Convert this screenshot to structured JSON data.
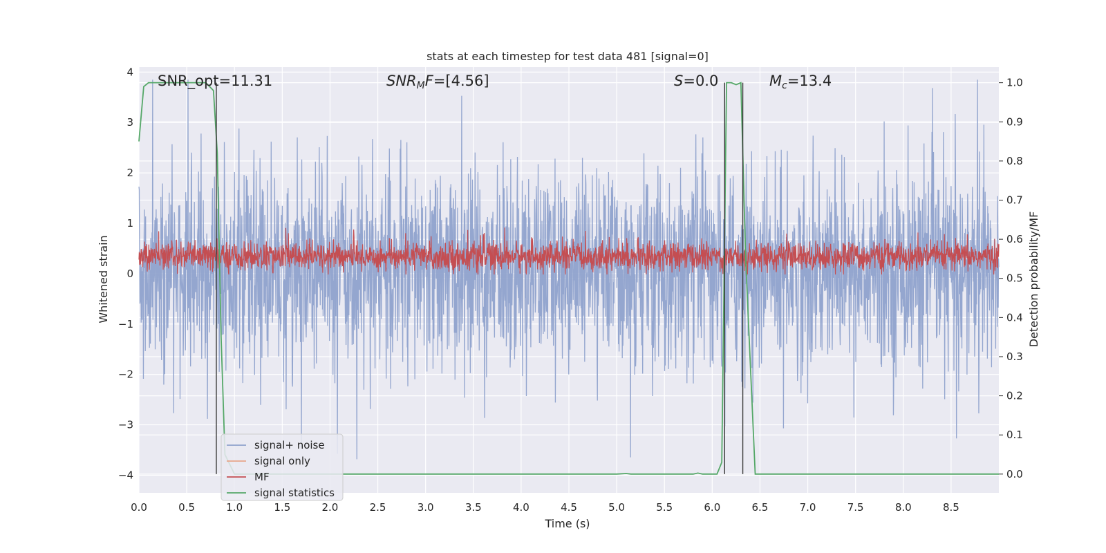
{
  "chart_data": {
    "type": "line",
    "title": "stats at each timestep for test data 481 [signal=0]",
    "xlabel": "Time (s)",
    "ylabel": "Whitened strain",
    "y2label": "Detection probability/MF",
    "xlim": [
      0,
      9.0
    ],
    "ylim": [
      -4.35,
      4.1
    ],
    "y2lim": [
      -0.048,
      1.04
    ],
    "xticks": [
      "0.0",
      "0.5",
      "1.0",
      "1.5",
      "2.0",
      "2.5",
      "3.0",
      "3.5",
      "4.0",
      "4.5",
      "5.0",
      "5.5",
      "6.0",
      "6.5",
      "7.0",
      "7.5",
      "8.0",
      "8.5"
    ],
    "xtick_values": [
      0.0,
      0.5,
      1.0,
      1.5,
      2.0,
      2.5,
      3.0,
      3.5,
      4.0,
      4.5,
      5.0,
      5.5,
      6.0,
      6.5,
      7.0,
      7.5,
      8.0,
      8.5
    ],
    "yticks": [
      "4",
      "3",
      "2",
      "1",
      "0",
      "−1",
      "−2",
      "−3",
      "−4"
    ],
    "ytick_values": [
      4,
      3,
      2,
      1,
      0,
      -1,
      -2,
      -3,
      -4
    ],
    "y2ticks": [
      "1.0",
      "0.9",
      "0.8",
      "0.7",
      "0.6",
      "0.5",
      "0.4",
      "0.3",
      "0.2",
      "0.1",
      "0.0"
    ],
    "y2tick_values": [
      1.0,
      0.9,
      0.8,
      0.7,
      0.6,
      0.5,
      0.4,
      0.3,
      0.2,
      0.1,
      0.0
    ],
    "grid": true,
    "legend_position": "lower-left",
    "annotations": [
      {
        "name": "snr-opt",
        "text": "SNR_opt=11.31"
      },
      {
        "name": "snr-mf",
        "text": "SNR_MF=[4.56]"
      },
      {
        "name": "s-value",
        "text": "S=0.0"
      },
      {
        "name": "mc-value",
        "text": "M_c=13.4"
      }
    ],
    "vlines_x": [
      0.81,
      6.13,
      6.32
    ],
    "series": [
      {
        "name": "signal+ noise",
        "color": "#8fa2cc",
        "description": "dense whitened strain noise",
        "typical_range": [
          -2.0,
          2.2
        ],
        "extremes": [
          -4.0,
          3.85
        ],
        "sample_rate_display": 3000,
        "n_points": 2700
      },
      {
        "name": "signal only",
        "color": "#e8a58a",
        "points": []
      },
      {
        "name": "MF",
        "color": "#c44e52",
        "description": "matched-filter output on right axis",
        "typical_range": [
          0.52,
          0.6
        ],
        "extremes": [
          0.51,
          0.65
        ],
        "n_points": 2700
      },
      {
        "name": "signal statistics",
        "color": "#55a868",
        "x": [
          0.0,
          0.05,
          0.1,
          0.2,
          0.3,
          0.4,
          0.5,
          0.6,
          0.7,
          0.78,
          0.82,
          0.86,
          0.9,
          1.0,
          1.5,
          2.0,
          2.5,
          3.0,
          3.5,
          4.0,
          4.5,
          5.0,
          5.1,
          5.15,
          5.5,
          5.8,
          5.85,
          5.9,
          6.0,
          6.05,
          6.1,
          6.15,
          6.2,
          6.25,
          6.3,
          6.35,
          6.45,
          6.5,
          7.0,
          7.5,
          8.0,
          8.5,
          9.0
        ],
        "y": [
          0.85,
          0.99,
          1.0,
          1.0,
          1.0,
          1.0,
          1.0,
          1.0,
          1.0,
          0.98,
          0.82,
          0.35,
          0.05,
          0.0,
          0.0,
          0.0,
          0.0,
          0.0,
          0.0,
          0.0,
          0.0,
          0.0,
          0.0015,
          0.0,
          0.0,
          0.0,
          0.0025,
          0.0,
          0.0,
          0.0,
          0.03,
          1.0,
          1.0,
          0.995,
          1.0,
          0.55,
          0.0,
          0.0,
          0.0,
          0.0,
          0.0,
          0.0,
          0.0
        ]
      }
    ]
  }
}
